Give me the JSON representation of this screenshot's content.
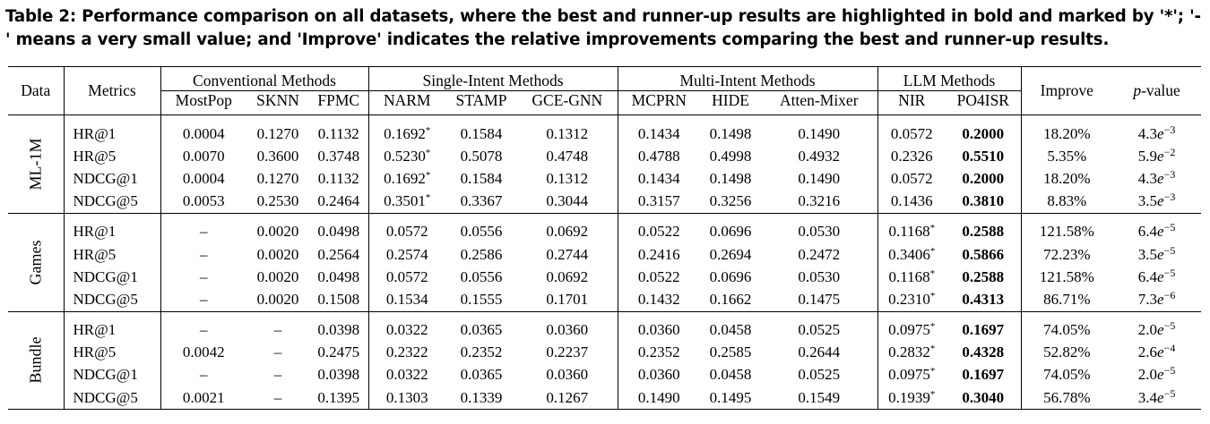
{
  "caption": "Table 2: Performance comparison on all datasets, where the best and runner-up results are highlighted in bold and marked by '*'; '-' means a very small value; and 'Improve' indicates the relative improvements comparing the best and runner-up results.",
  "header": {
    "data": "Data",
    "metrics": "Metrics",
    "groups": [
      "Conventional Methods",
      "Single-Intent Methods",
      "Multi-Intent Methods",
      "LLM Methods"
    ],
    "improve": "Improve",
    "pvalue_italic": "p",
    "pvalue_rest": "-value",
    "methods": [
      "MostPop",
      "SKNN",
      "FPMC",
      "NARM",
      "STAMP",
      "GCE-GNN",
      "MCPRN",
      "HIDE",
      "Atten-Mixer",
      "NIR",
      "PO4ISR"
    ]
  },
  "datasets": [
    {
      "name": "ML-1M",
      "rows": [
        {
          "metric": "HR@1",
          "values": [
            "0.0004",
            "0.1270",
            "0.1132",
            "0.1692*",
            "0.1584",
            "0.1312",
            "0.1434",
            "0.1498",
            "0.1490",
            "0.0572",
            "0.2000"
          ],
          "improve": "18.20%",
          "p_mant": "4.3",
          "p_exp": "−3"
        },
        {
          "metric": "HR@5",
          "values": [
            "0.0070",
            "0.3600",
            "0.3748",
            "0.5230*",
            "0.5078",
            "0.4748",
            "0.4788",
            "0.4998",
            "0.4932",
            "0.2326",
            "0.5510"
          ],
          "improve": "5.35%",
          "p_mant": "5.9",
          "p_exp": "−2"
        },
        {
          "metric": "NDCG@1",
          "values": [
            "0.0004",
            "0.1270",
            "0.1132",
            "0.1692*",
            "0.1584",
            "0.1312",
            "0.1434",
            "0.1498",
            "0.1490",
            "0.0572",
            "0.2000"
          ],
          "improve": "18.20%",
          "p_mant": "4.3",
          "p_exp": "−3"
        },
        {
          "metric": "NDCG@5",
          "values": [
            "0.0053",
            "0.2530",
            "0.2464",
            "0.3501*",
            "0.3367",
            "0.3044",
            "0.3157",
            "0.3256",
            "0.3216",
            "0.1436",
            "0.3810"
          ],
          "improve": "8.83%",
          "p_mant": "3.5",
          "p_exp": "−3"
        }
      ]
    },
    {
      "name": "Games",
      "rows": [
        {
          "metric": "HR@1",
          "values": [
            "–",
            "0.0020",
            "0.0498",
            "0.0572",
            "0.0556",
            "0.0692",
            "0.0522",
            "0.0696",
            "0.0530",
            "0.1168*",
            "0.2588"
          ],
          "improve": "121.58%",
          "p_mant": "6.4",
          "p_exp": "−5"
        },
        {
          "metric": "HR@5",
          "values": [
            "–",
            "0.0020",
            "0.2564",
            "0.2574",
            "0.2586",
            "0.2744",
            "0.2416",
            "0.2694",
            "0.2472",
            "0.3406*",
            "0.5866"
          ],
          "improve": "72.23%",
          "p_mant": "3.5",
          "p_exp": "−5"
        },
        {
          "metric": "NDCG@1",
          "values": [
            "–",
            "0.0020",
            "0.0498",
            "0.0572",
            "0.0556",
            "0.0692",
            "0.0522",
            "0.0696",
            "0.0530",
            "0.1168*",
            "0.2588"
          ],
          "improve": "121.58%",
          "p_mant": "6.4",
          "p_exp": "−5"
        },
        {
          "metric": "NDCG@5",
          "values": [
            "–",
            "0.0020",
            "0.1508",
            "0.1534",
            "0.1555",
            "0.1701",
            "0.1432",
            "0.1662",
            "0.1475",
            "0.2310*",
            "0.4313"
          ],
          "improve": "86.71%",
          "p_mant": "7.3",
          "p_exp": "−6"
        }
      ]
    },
    {
      "name": "Bundle",
      "rows": [
        {
          "metric": "HR@1",
          "values": [
            "–",
            "–",
            "0.0398",
            "0.0322",
            "0.0365",
            "0.0360",
            "0.0360",
            "0.0458",
            "0.0525",
            "0.0975*",
            "0.1697"
          ],
          "improve": "74.05%",
          "p_mant": "2.0",
          "p_exp": "−5"
        },
        {
          "metric": "HR@5",
          "values": [
            "0.0042",
            "–",
            "0.2475",
            "0.2322",
            "0.2352",
            "0.2237",
            "0.2352",
            "0.2585",
            "0.2644",
            "0.2832*",
            "0.4328"
          ],
          "improve": "52.82%",
          "p_mant": "2.6",
          "p_exp": "−4"
        },
        {
          "metric": "NDCG@1",
          "values": [
            "–",
            "–",
            "0.0398",
            "0.0322",
            "0.0365",
            "0.0360",
            "0.0360",
            "0.0458",
            "0.0525",
            "0.0975*",
            "0.1697"
          ],
          "improve": "74.05%",
          "p_mant": "2.0",
          "p_exp": "−5"
        },
        {
          "metric": "NDCG@5",
          "values": [
            "0.0021",
            "–",
            "0.1395",
            "0.1303",
            "0.1339",
            "0.1267",
            "0.1490",
            "0.1495",
            "0.1549",
            "0.1939*",
            "0.3040"
          ],
          "improve": "56.78%",
          "p_mant": "3.4",
          "p_exp": "−5"
        }
      ]
    }
  ]
}
